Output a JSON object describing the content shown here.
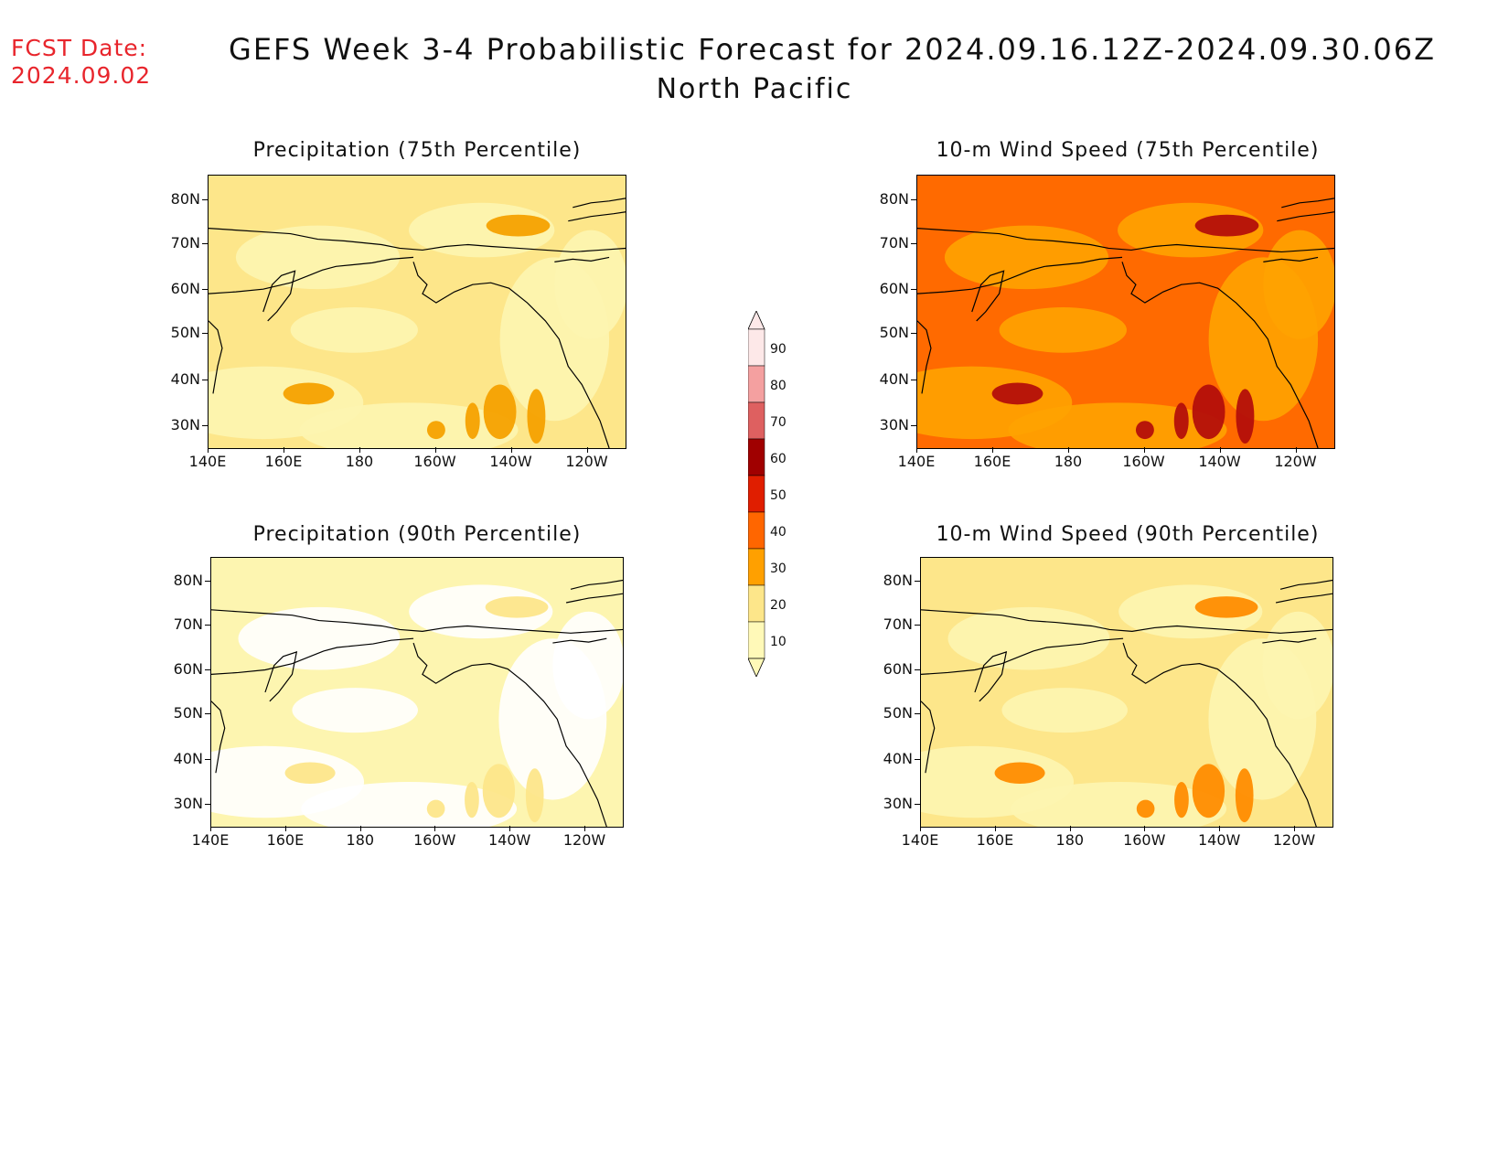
{
  "header": {
    "fcst_date_label": "FCST Date:",
    "fcst_date_value": "2024.09.02",
    "title": "GEFS Week 3-4 Probabilistic Forecast for 2024.09.16.12Z-2024.09.30.06Z",
    "subtitle": "North Pacific"
  },
  "axes": {
    "lat_labels": [
      "80N",
      "70N",
      "60N",
      "50N",
      "40N",
      "30N"
    ],
    "lon_labels": [
      "140E",
      "160E",
      "180",
      "160W",
      "140W",
      "120W"
    ]
  },
  "panels": [
    {
      "id": "precip-75",
      "title": "Precipitation (75th Percentile)",
      "dominant_color": "#fde68a",
      "secondary_color": "#fdf5b0",
      "accent_color": "#f5a100"
    },
    {
      "id": "wind-75",
      "title": "10-m Wind Speed (75th Percentile)",
      "dominant_color": "#ff6a00",
      "secondary_color": "#ffa300",
      "accent_color": "#b40f0a"
    },
    {
      "id": "precip-90",
      "title": "Precipitation (90th Percentile)",
      "dominant_color": "#fdf5b0",
      "secondary_color": "#ffffff",
      "accent_color": "#fde68a"
    },
    {
      "id": "wind-90",
      "title": "10-m Wind Speed (90th Percentile)",
      "dominant_color": "#fde68a",
      "secondary_color": "#fdf5b0",
      "accent_color": "#ff8c00"
    }
  ],
  "colorbar": {
    "labels": [
      "90",
      "80",
      "70",
      "60",
      "50",
      "40",
      "30",
      "20",
      "10"
    ],
    "colors": [
      "#fde8e8",
      "#f4a0a0",
      "#de6060",
      "#a00000",
      "#e01e00",
      "#ff6600",
      "#ffa000",
      "#fde68a",
      "#fff9b8"
    ]
  }
}
